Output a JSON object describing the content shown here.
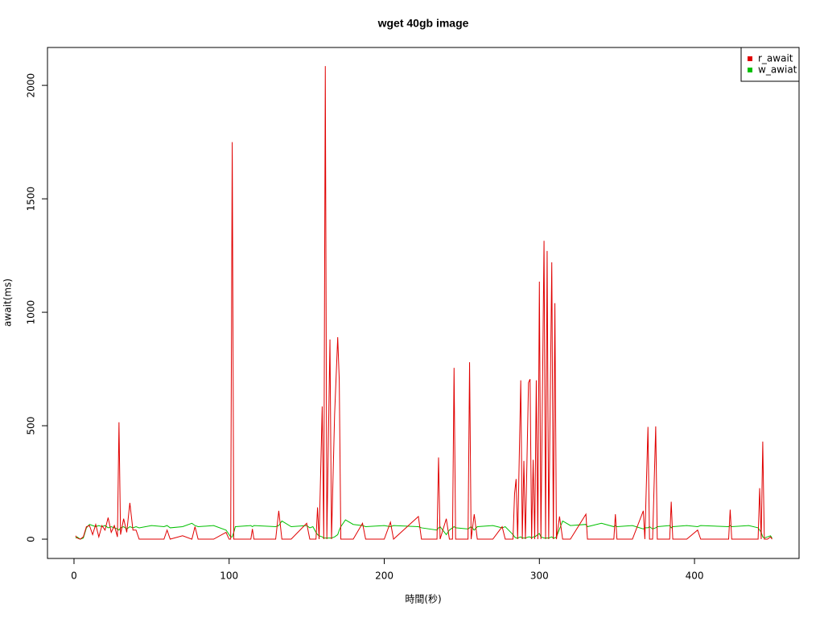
{
  "chart_data": {
    "type": "line",
    "title": "wget 40gb image",
    "xlabel": "時間(秒)",
    "ylabel": "await(ms)",
    "x": [
      1,
      2,
      4,
      6,
      8,
      10,
      12,
      14,
      16,
      18,
      20,
      22,
      24,
      26,
      28,
      29,
      30,
      32,
      34,
      36,
      38,
      40,
      42,
      50,
      58,
      60,
      62,
      70,
      76,
      78,
      80,
      90,
      98,
      100,
      101,
      102,
      103,
      104,
      114,
      115,
      116,
      130,
      132,
      134,
      140,
      150,
      152,
      154,
      156,
      157,
      158,
      160,
      161,
      162,
      163,
      165,
      166,
      168,
      170,
      171,
      172,
      175,
      180,
      186,
      188,
      200,
      204,
      206,
      222,
      224,
      234,
      235,
      236,
      240,
      242,
      244,
      245,
      246,
      254,
      255,
      256,
      258,
      260,
      270,
      276,
      278,
      283,
      284,
      285,
      286,
      288,
      289,
      290,
      291,
      293,
      294,
      295,
      296,
      297,
      298,
      299,
      300,
      301,
      303,
      304,
      305,
      306,
      308,
      309,
      310,
      311,
      313,
      315,
      320,
      330,
      331,
      340,
      348,
      349,
      350,
      360,
      367,
      368,
      370,
      371,
      373,
      375,
      376,
      384,
      385,
      386,
      395,
      402,
      404,
      422,
      423,
      424,
      435,
      441,
      442,
      443,
      444,
      445,
      447,
      449,
      450
    ],
    "series": [
      {
        "name": "r_await",
        "color": "#e00000",
        "values": [
          15,
          5,
          0,
          10,
          55,
          60,
          20,
          65,
          10,
          60,
          40,
          95,
          30,
          60,
          10,
          515,
          20,
          90,
          30,
          160,
          40,
          40,
          0,
          0,
          0,
          40,
          0,
          15,
          0,
          55,
          0,
          0,
          30,
          0,
          0,
          1750,
          0,
          0,
          0,
          45,
          0,
          0,
          125,
          0,
          0,
          70,
          0,
          0,
          0,
          140,
          0,
          585,
          0,
          2085,
          0,
          880,
          0,
          550,
          890,
          700,
          0,
          0,
          0,
          70,
          0,
          0,
          75,
          0,
          100,
          0,
          0,
          360,
          0,
          90,
          0,
          0,
          755,
          0,
          0,
          780,
          0,
          110,
          0,
          0,
          55,
          0,
          0,
          200,
          265,
          0,
          700,
          0,
          345,
          0,
          690,
          705,
          0,
          350,
          0,
          700,
          0,
          1135,
          0,
          1315,
          0,
          1270,
          0,
          1220,
          0,
          1040,
          0,
          100,
          0,
          0,
          110,
          0,
          0,
          0,
          110,
          0,
          0,
          125,
          0,
          495,
          0,
          0,
          497,
          0,
          0,
          165,
          0,
          0,
          40,
          0,
          0,
          130,
          0,
          0,
          0,
          225,
          0,
          430,
          0,
          0,
          10,
          0
        ]
      },
      {
        "name": "w_awiat",
        "color": "#00c000",
        "values": [
          5,
          10,
          0,
          5,
          50,
          65,
          60,
          55,
          60,
          55,
          60,
          50,
          55,
          50,
          45,
          40,
          50,
          55,
          45,
          55,
          50,
          55,
          50,
          60,
          55,
          60,
          50,
          55,
          70,
          60,
          55,
          60,
          40,
          20,
          10,
          10,
          30,
          55,
          60,
          55,
          60,
          55,
          60,
          80,
          55,
          60,
          50,
          55,
          30,
          20,
          15,
          10,
          5,
          5,
          5,
          5,
          5,
          10,
          20,
          40,
          55,
          85,
          65,
          60,
          55,
          60,
          55,
          60,
          55,
          50,
          40,
          50,
          55,
          20,
          40,
          50,
          55,
          50,
          45,
          50,
          55,
          40,
          55,
          60,
          50,
          55,
          20,
          10,
          5,
          5,
          10,
          5,
          5,
          5,
          10,
          10,
          5,
          10,
          10,
          15,
          20,
          25,
          10,
          5,
          5,
          5,
          5,
          10,
          5,
          5,
          10,
          45,
          80,
          60,
          65,
          55,
          70,
          55,
          60,
          55,
          60,
          45,
          50,
          50,
          55,
          45,
          50,
          55,
          60,
          50,
          55,
          60,
          55,
          60,
          55,
          60,
          55,
          60,
          50,
          40,
          30,
          10,
          5,
          10,
          15,
          5
        ]
      }
    ],
    "xlim": [
      -17.1,
      467.4
    ],
    "ylim": [
      -85,
      2167
    ],
    "xticks": [
      0,
      100,
      200,
      300,
      400
    ],
    "yticks": [
      0,
      500,
      1000,
      1500,
      2000
    ],
    "legend": "top-right"
  }
}
